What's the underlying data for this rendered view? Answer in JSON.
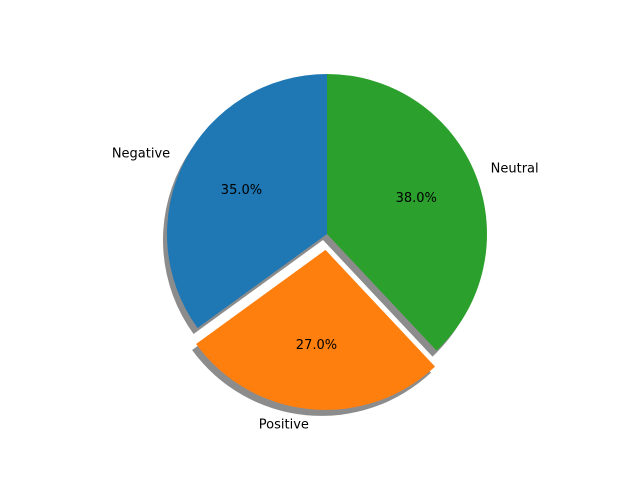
{
  "chart_data": {
    "type": "pie",
    "categories": [
      "Negative",
      "Positive",
      "Neutral"
    ],
    "values": [
      35.0,
      27.0,
      38.0
    ],
    "value_labels": [
      "35.0%",
      "27.0%",
      "38.0%"
    ],
    "colors": [
      "#1f77b4",
      "#ff7f0e",
      "#2ca02c"
    ],
    "exploded": [
      "Positive"
    ],
    "shadow": true,
    "start_angle_deg": 90,
    "direction": "counterclockwise",
    "legend": false
  }
}
